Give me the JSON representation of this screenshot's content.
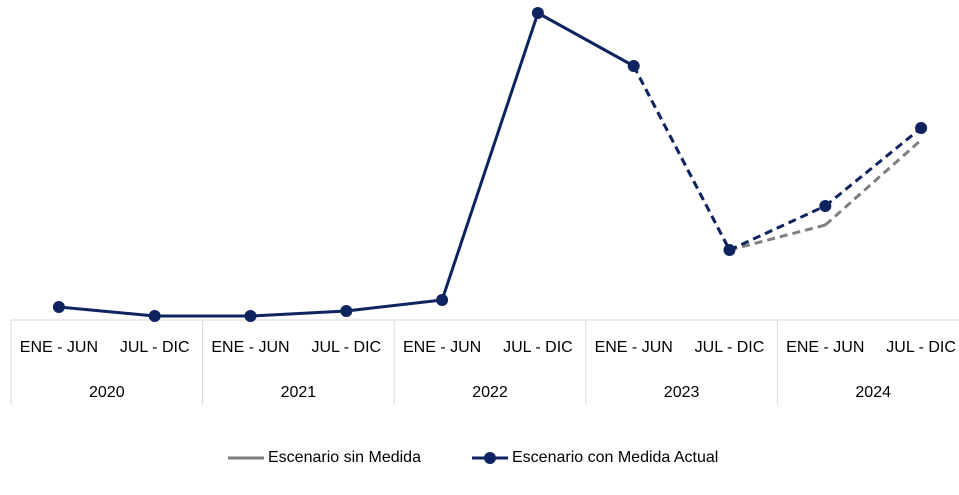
{
  "chart_data": {
    "type": "line",
    "categories": [
      "ENE - JUN",
      "JUL - DIC",
      "ENE - JUN",
      "JUL - DIC",
      "ENE - JUN",
      "JUL - DIC",
      "ENE - JUN",
      "JUL - DIC",
      "ENE - JUN",
      "JUL - DIC"
    ],
    "groups": [
      "2020",
      "2021",
      "2022",
      "2023",
      "2024"
    ],
    "ylim": [
      0,
      320
    ],
    "series": [
      {
        "name": "Escenario sin Medida",
        "color": "#7f7f7f",
        "dashed": true,
        "markers": false,
        "values": [
          null,
          null,
          null,
          null,
          null,
          null,
          254,
          70,
          95,
          180
        ]
      },
      {
        "name": "Escenario con Medida Actual",
        "color": "#0d2461",
        "dashed_from_index": 6,
        "markers": true,
        "values": [
          13,
          4,
          4,
          9,
          20,
          307,
          254,
          70,
          114,
          192
        ]
      }
    ],
    "legend": "bottom"
  }
}
